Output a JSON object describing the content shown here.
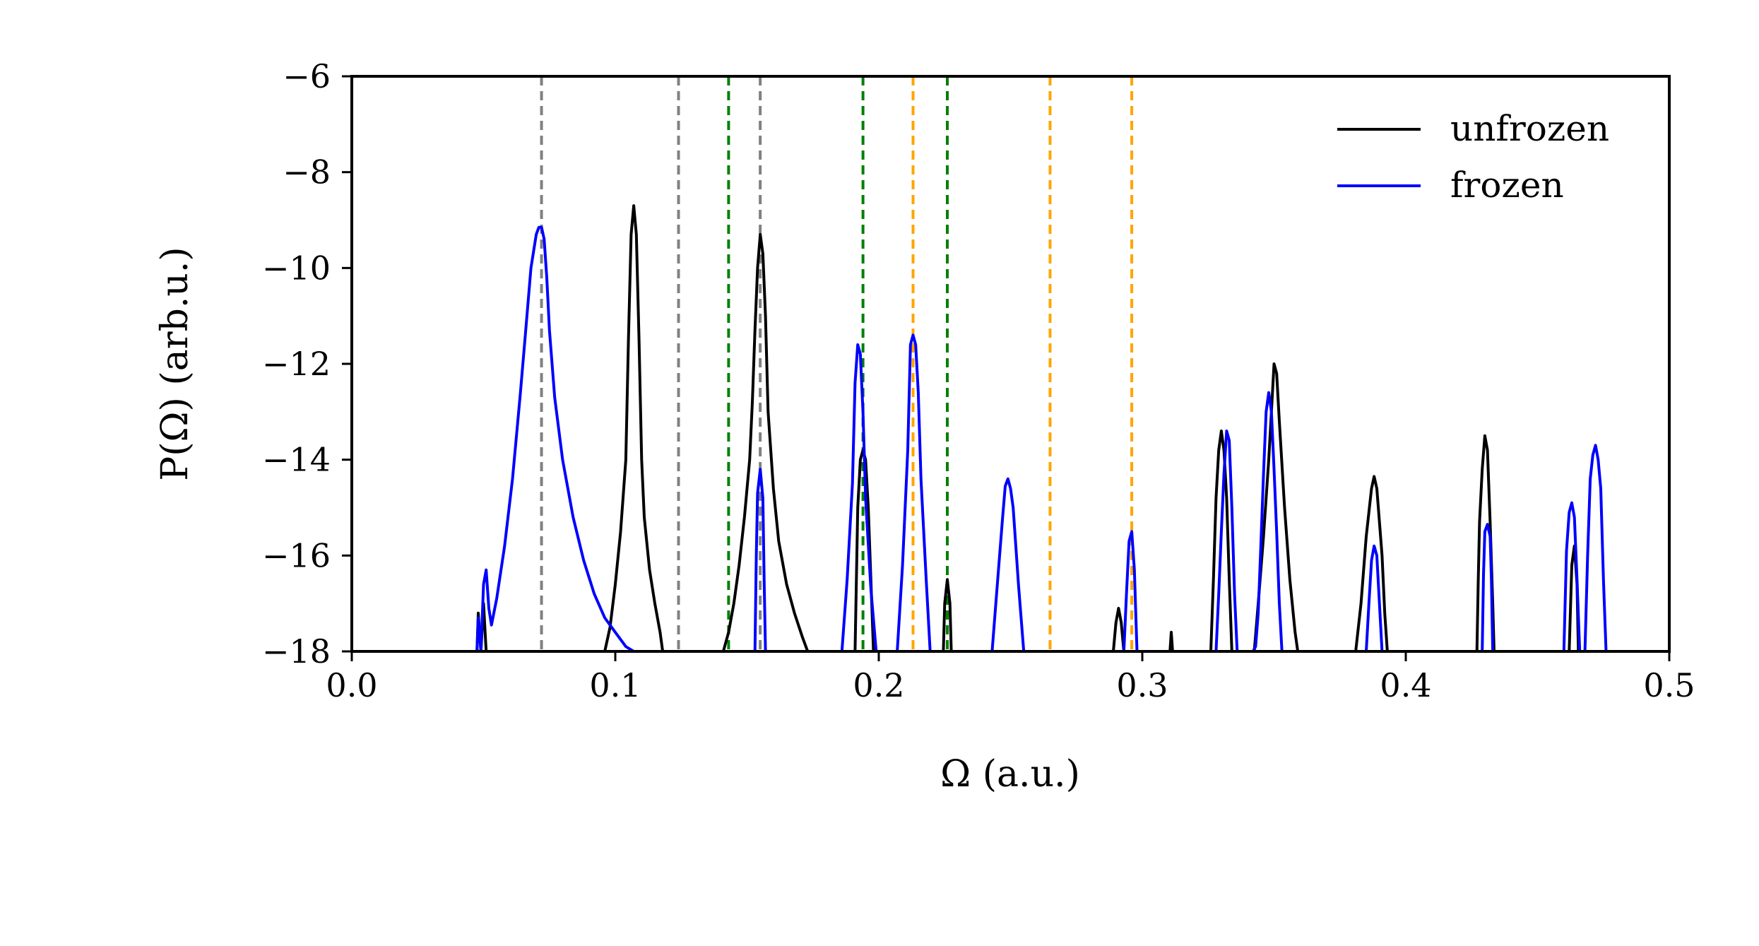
{
  "chart_data": {
    "type": "line",
    "title": "",
    "xlabel": "Ω (a.u.)",
    "ylabel": "P(Ω) (arb.u.)",
    "xlim": [
      0.0,
      0.5
    ],
    "ylim": [
      -18,
      -6
    ],
    "xticks": [
      {
        "value": 0.0,
        "label": "0.0"
      },
      {
        "value": 0.1,
        "label": "0.1"
      },
      {
        "value": 0.2,
        "label": "0.2"
      },
      {
        "value": 0.3,
        "label": "0.3"
      },
      {
        "value": 0.4,
        "label": "0.4"
      },
      {
        "value": 0.5,
        "label": "0.5"
      }
    ],
    "yticks": [
      {
        "value": -6,
        "label": "−6"
      },
      {
        "value": -8,
        "label": "−8"
      },
      {
        "value": -10,
        "label": "−10"
      },
      {
        "value": -12,
        "label": "−12"
      },
      {
        "value": -14,
        "label": "−14"
      },
      {
        "value": -16,
        "label": "−16"
      },
      {
        "value": -18,
        "label": "−18"
      }
    ],
    "grid": false,
    "legend_position": "top-right",
    "reference_lines": [
      {
        "x": 0.072,
        "color": "#808080"
      },
      {
        "x": 0.124,
        "color": "#808080"
      },
      {
        "x": 0.155,
        "color": "#808080"
      },
      {
        "x": 0.143,
        "color": "#008000"
      },
      {
        "x": 0.194,
        "color": "#008000"
      },
      {
        "x": 0.226,
        "color": "#008000"
      },
      {
        "x": 0.213,
        "color": "#FFA500"
      },
      {
        "x": 0.265,
        "color": "#FFA500"
      },
      {
        "x": 0.296,
        "color": "#FFA500"
      }
    ],
    "series": [
      {
        "name": "unfrozen",
        "color": "#000000",
        "points": [
          [
            0.0475,
            -18
          ],
          [
            0.048,
            -17.2
          ],
          [
            0.049,
            -18
          ],
          [
            0.05,
            -17.0
          ],
          [
            0.051,
            -18
          ],
          [
            0.096,
            -18
          ],
          [
            0.098,
            -17.5
          ],
          [
            0.1,
            -16.6
          ],
          [
            0.102,
            -15.5
          ],
          [
            0.104,
            -14.0
          ],
          [
            0.105,
            -11.5
          ],
          [
            0.106,
            -9.3
          ],
          [
            0.107,
            -8.7
          ],
          [
            0.108,
            -9.3
          ],
          [
            0.109,
            -11.5
          ],
          [
            0.11,
            -14.0
          ],
          [
            0.111,
            -15.2
          ],
          [
            0.113,
            -16.3
          ],
          [
            0.115,
            -17.0
          ],
          [
            0.117,
            -17.6
          ],
          [
            0.118,
            -18
          ],
          [
            0.141,
            -18
          ],
          [
            0.143,
            -17.6
          ],
          [
            0.145,
            -17.0
          ],
          [
            0.147,
            -16.2
          ],
          [
            0.149,
            -15.2
          ],
          [
            0.151,
            -14.0
          ],
          [
            0.152,
            -12.8
          ],
          [
            0.153,
            -11.3
          ],
          [
            0.154,
            -10.0
          ],
          [
            0.155,
            -9.3
          ],
          [
            0.156,
            -9.7
          ],
          [
            0.157,
            -11.0
          ],
          [
            0.158,
            -13.0
          ],
          [
            0.16,
            -14.6
          ],
          [
            0.162,
            -15.7
          ],
          [
            0.165,
            -16.6
          ],
          [
            0.168,
            -17.2
          ],
          [
            0.171,
            -17.7
          ],
          [
            0.173,
            -18
          ],
          [
            0.191,
            -18
          ],
          [
            0.1915,
            -16.5
          ],
          [
            0.192,
            -15.0
          ],
          [
            0.193,
            -14.0
          ],
          [
            0.194,
            -13.8
          ],
          [
            0.195,
            -14.0
          ],
          [
            0.196,
            -15.0
          ],
          [
            0.197,
            -16.5
          ],
          [
            0.198,
            -18
          ],
          [
            0.2245,
            -18
          ],
          [
            0.225,
            -17.0
          ],
          [
            0.226,
            -16.5
          ],
          [
            0.227,
            -17.0
          ],
          [
            0.2275,
            -18
          ],
          [
            0.289,
            -18
          ],
          [
            0.29,
            -17.4
          ],
          [
            0.291,
            -17.1
          ],
          [
            0.292,
            -17.4
          ],
          [
            0.293,
            -18
          ],
          [
            0.3105,
            -18
          ],
          [
            0.311,
            -17.6
          ],
          [
            0.3115,
            -18
          ],
          [
            0.326,
            -18
          ],
          [
            0.327,
            -16.5
          ],
          [
            0.328,
            -14.8
          ],
          [
            0.329,
            -13.8
          ],
          [
            0.33,
            -13.4
          ],
          [
            0.331,
            -13.8
          ],
          [
            0.332,
            -14.8
          ],
          [
            0.333,
            -16.5
          ],
          [
            0.334,
            -18
          ],
          [
            0.3425,
            -18
          ],
          [
            0.344,
            -17.0
          ],
          [
            0.346,
            -15.6
          ],
          [
            0.348,
            -14.0
          ],
          [
            0.349,
            -13.0
          ],
          [
            0.35,
            -12.0
          ],
          [
            0.351,
            -12.2
          ],
          [
            0.352,
            -13.2
          ],
          [
            0.354,
            -15.0
          ],
          [
            0.356,
            -16.5
          ],
          [
            0.358,
            -17.6
          ],
          [
            0.359,
            -18
          ],
          [
            0.381,
            -18
          ],
          [
            0.383,
            -17.0
          ],
          [
            0.385,
            -15.6
          ],
          [
            0.387,
            -14.6
          ],
          [
            0.388,
            -14.35
          ],
          [
            0.389,
            -14.6
          ],
          [
            0.391,
            -16.0
          ],
          [
            0.392,
            -17.2
          ],
          [
            0.393,
            -18
          ],
          [
            0.427,
            -18
          ],
          [
            0.4275,
            -16.5
          ],
          [
            0.428,
            -15.3
          ],
          [
            0.429,
            -14.2
          ],
          [
            0.43,
            -13.5
          ],
          [
            0.431,
            -13.8
          ],
          [
            0.432,
            -15.3
          ],
          [
            0.433,
            -17.0
          ],
          [
            0.4335,
            -18
          ],
          [
            0.462,
            -18
          ],
          [
            0.463,
            -16.2
          ],
          [
            0.464,
            -15.8
          ],
          [
            0.465,
            -16.6
          ],
          [
            0.4655,
            -18
          ]
        ]
      },
      {
        "name": "frozen",
        "color": "#0000FF",
        "points": [
          [
            0.0475,
            -18
          ],
          [
            0.048,
            -17.3
          ],
          [
            0.049,
            -18
          ],
          [
            0.05,
            -16.6
          ],
          [
            0.051,
            -16.3
          ],
          [
            0.052,
            -17.1
          ],
          [
            0.053,
            -17.45
          ],
          [
            0.055,
            -16.9
          ],
          [
            0.058,
            -15.8
          ],
          [
            0.061,
            -14.4
          ],
          [
            0.064,
            -12.6
          ],
          [
            0.066,
            -11.3
          ],
          [
            0.068,
            -10.0
          ],
          [
            0.07,
            -9.3
          ],
          [
            0.071,
            -9.15
          ],
          [
            0.072,
            -9.15
          ],
          [
            0.073,
            -9.4
          ],
          [
            0.074,
            -10.2
          ],
          [
            0.075,
            -11.3
          ],
          [
            0.077,
            -12.7
          ],
          [
            0.08,
            -14.0
          ],
          [
            0.084,
            -15.2
          ],
          [
            0.088,
            -16.1
          ],
          [
            0.092,
            -16.8
          ],
          [
            0.096,
            -17.3
          ],
          [
            0.1,
            -17.6
          ],
          [
            0.104,
            -17.9
          ],
          [
            0.107,
            -18
          ],
          [
            0.153,
            -18
          ],
          [
            0.1535,
            -16.0
          ],
          [
            0.154,
            -14.7
          ],
          [
            0.155,
            -14.2
          ],
          [
            0.156,
            -14.8
          ],
          [
            0.1565,
            -16.5
          ],
          [
            0.157,
            -18
          ],
          [
            0.186,
            -18
          ],
          [
            0.188,
            -16.5
          ],
          [
            0.19,
            -14.5
          ],
          [
            0.191,
            -12.4
          ],
          [
            0.192,
            -11.6
          ],
          [
            0.193,
            -11.8
          ],
          [
            0.194,
            -13.0
          ],
          [
            0.195,
            -14.8
          ],
          [
            0.197,
            -16.7
          ],
          [
            0.199,
            -18
          ],
          [
            0.207,
            -18
          ],
          [
            0.209,
            -16.2
          ],
          [
            0.211,
            -13.8
          ],
          [
            0.212,
            -11.6
          ],
          [
            0.213,
            -11.4
          ],
          [
            0.214,
            -11.6
          ],
          [
            0.215,
            -12.6
          ],
          [
            0.216,
            -14.4
          ],
          [
            0.218,
            -16.5
          ],
          [
            0.2195,
            -18
          ],
          [
            0.243,
            -18
          ],
          [
            0.245,
            -16.6
          ],
          [
            0.247,
            -15.2
          ],
          [
            0.248,
            -14.55
          ],
          [
            0.249,
            -14.4
          ],
          [
            0.25,
            -14.6
          ],
          [
            0.251,
            -15.0
          ],
          [
            0.253,
            -16.6
          ],
          [
            0.255,
            -18
          ],
          [
            0.293,
            -18
          ],
          [
            0.294,
            -16.8
          ],
          [
            0.295,
            -15.7
          ],
          [
            0.296,
            -15.5
          ],
          [
            0.297,
            -16.3
          ],
          [
            0.298,
            -18
          ],
          [
            0.328,
            -18
          ],
          [
            0.329,
            -16.8
          ],
          [
            0.33,
            -15.5
          ],
          [
            0.331,
            -14.3
          ],
          [
            0.332,
            -13.4
          ],
          [
            0.333,
            -13.6
          ],
          [
            0.334,
            -15.0
          ],
          [
            0.335,
            -16.8
          ],
          [
            0.336,
            -18
          ],
          [
            0.342,
            -18
          ],
          [
            0.343,
            -17.9
          ],
          [
            0.344,
            -17.2
          ],
          [
            0.345,
            -15.8
          ],
          [
            0.346,
            -14.3
          ],
          [
            0.347,
            -13.0
          ],
          [
            0.348,
            -12.6
          ],
          [
            0.349,
            -13.0
          ],
          [
            0.35,
            -14.2
          ],
          [
            0.351,
            -15.5
          ],
          [
            0.352,
            -17.0
          ],
          [
            0.353,
            -18
          ],
          [
            0.385,
            -18
          ],
          [
            0.386,
            -17.0
          ],
          [
            0.387,
            -16.1
          ],
          [
            0.388,
            -15.8
          ],
          [
            0.389,
            -16.0
          ],
          [
            0.39,
            -17.0
          ],
          [
            0.391,
            -18
          ],
          [
            0.429,
            -18
          ],
          [
            0.4295,
            -16.4
          ],
          [
            0.43,
            -15.5
          ],
          [
            0.431,
            -15.35
          ],
          [
            0.432,
            -15.6
          ],
          [
            0.4325,
            -16.5
          ],
          [
            0.433,
            -18
          ],
          [
            0.46,
            -18
          ],
          [
            0.461,
            -15.9
          ],
          [
            0.462,
            -15.1
          ],
          [
            0.463,
            -14.9
          ],
          [
            0.464,
            -15.2
          ],
          [
            0.465,
            -16.5
          ],
          [
            0.466,
            -18
          ],
          [
            0.468,
            -18
          ],
          [
            0.469,
            -16.0
          ],
          [
            0.47,
            -14.4
          ],
          [
            0.471,
            -13.9
          ],
          [
            0.472,
            -13.7
          ],
          [
            0.473,
            -14.0
          ],
          [
            0.474,
            -14.6
          ],
          [
            0.475,
            -16.5
          ],
          [
            0.476,
            -18
          ]
        ]
      }
    ]
  }
}
